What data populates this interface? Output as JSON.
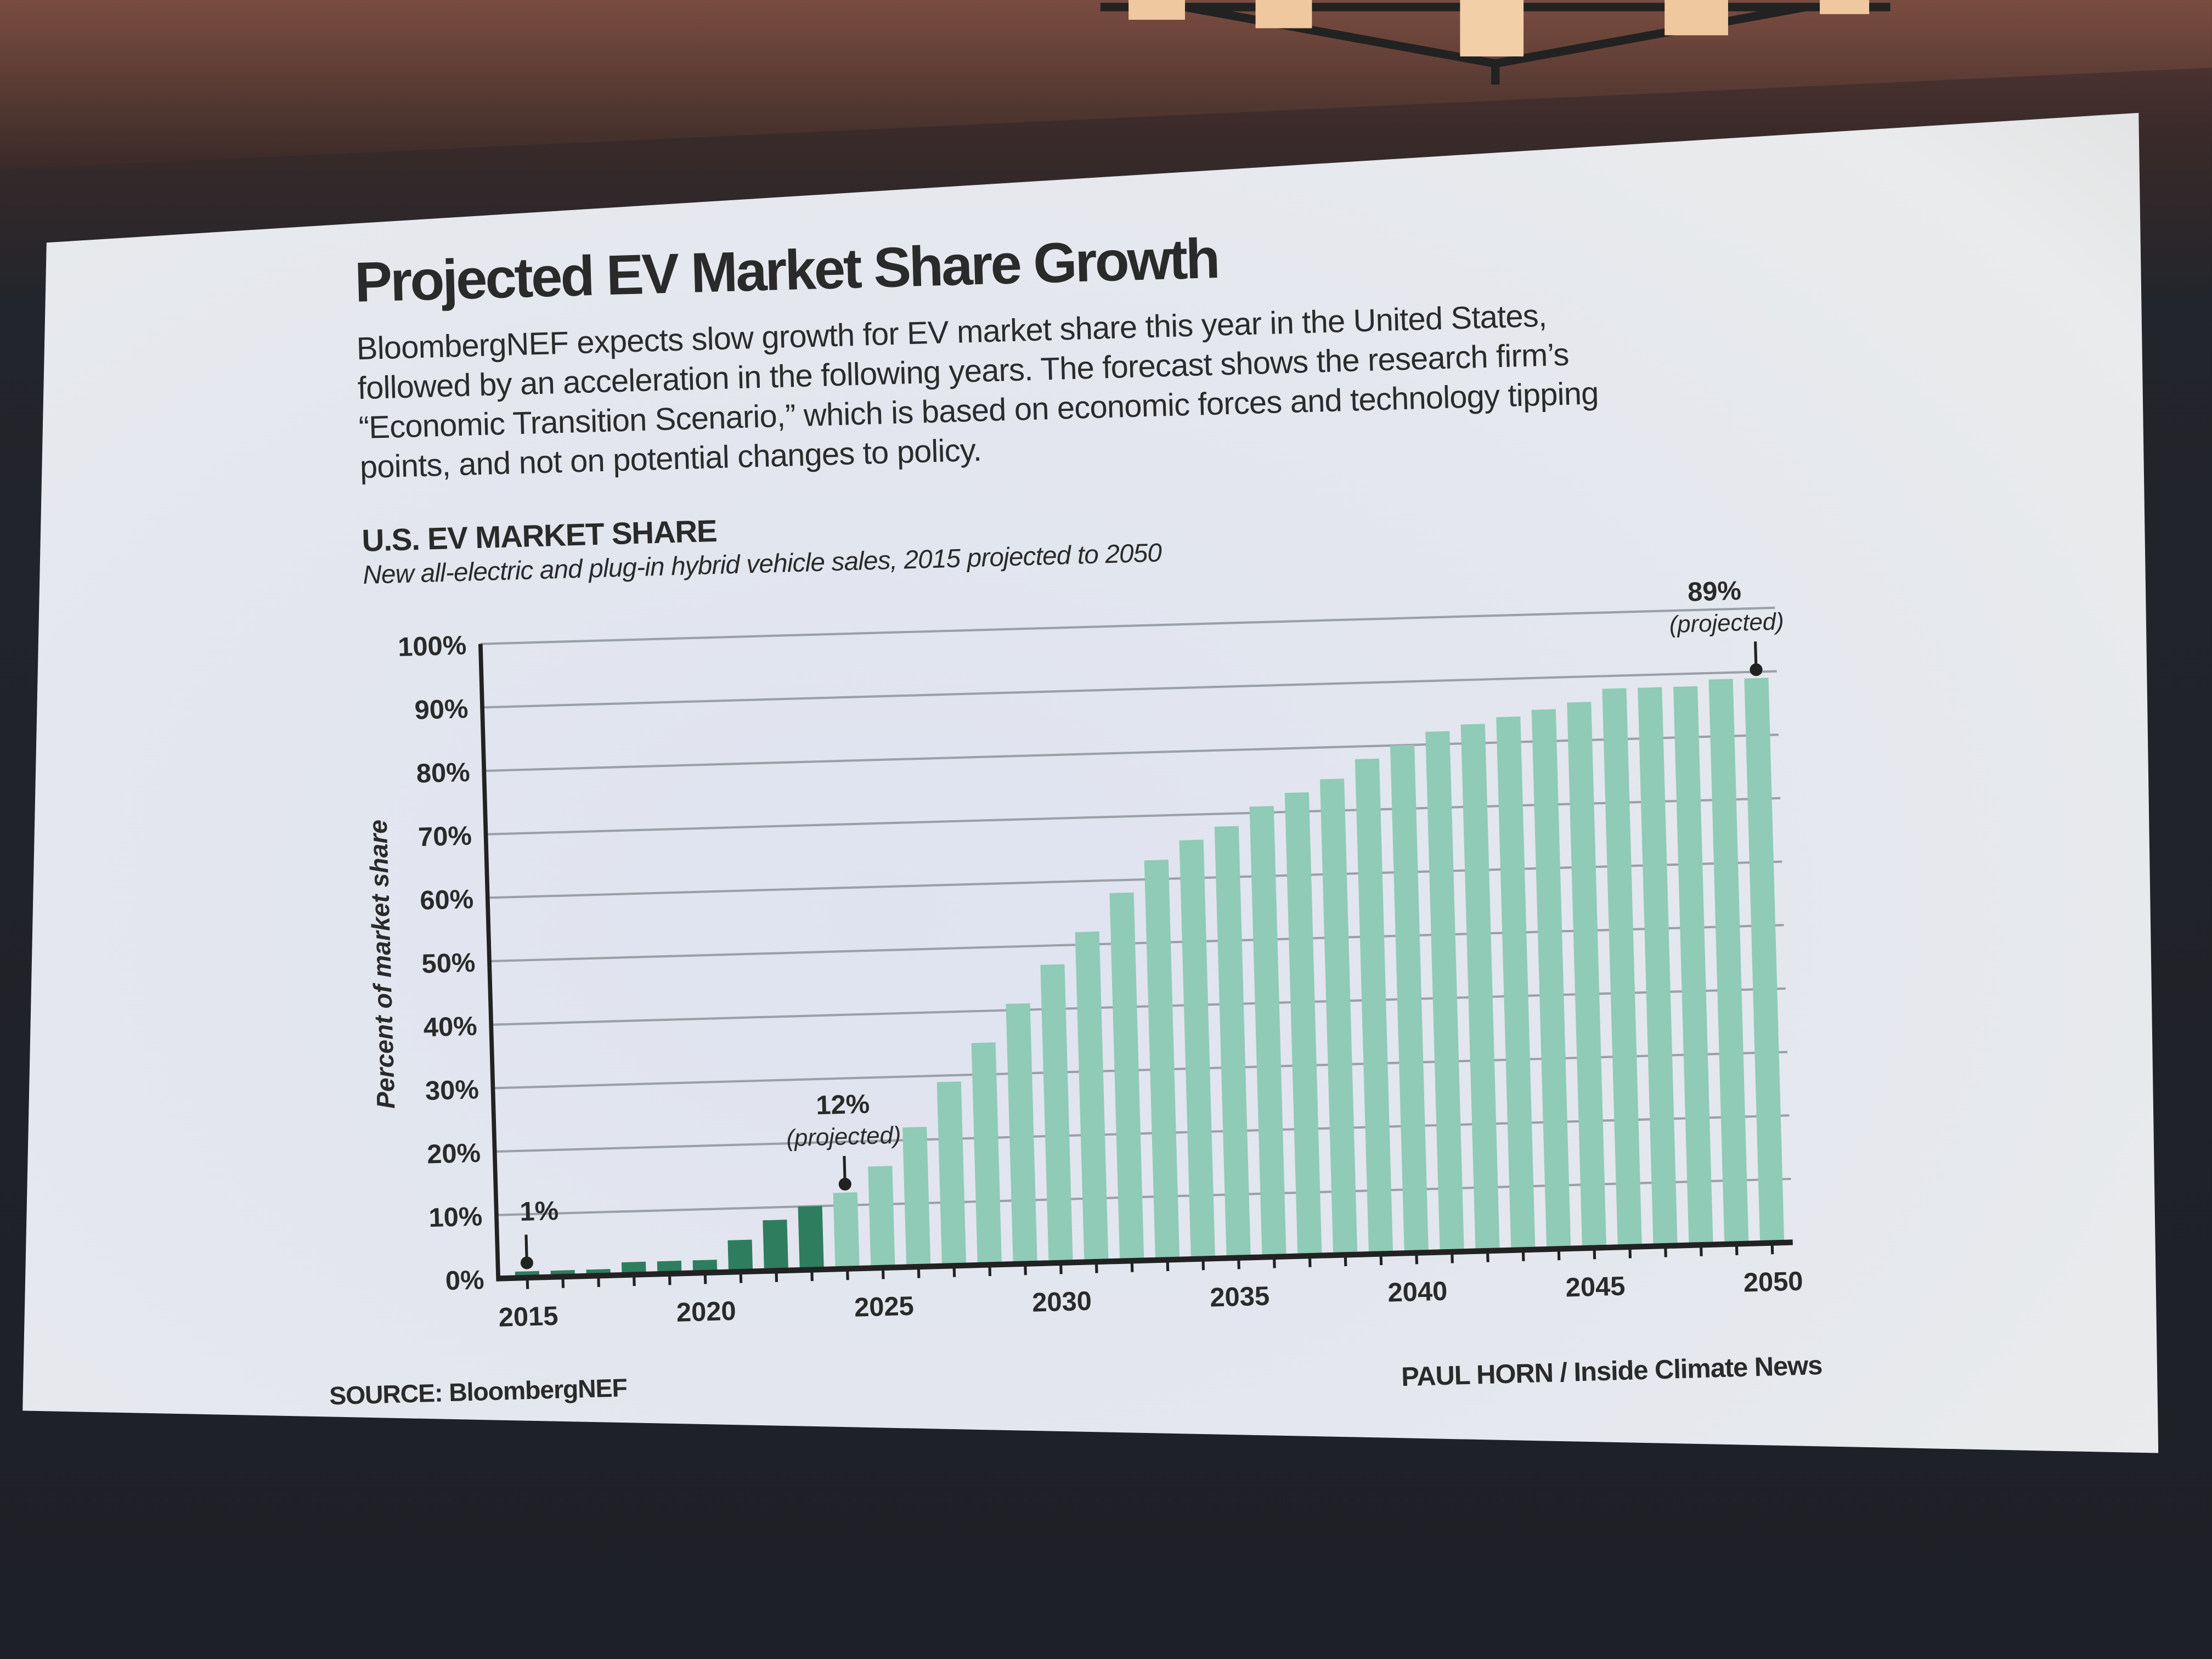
{
  "slide": {
    "title": "Projected EV Market Share Growth",
    "description": "BloombergNEF expects slow growth for EV market share this year in the United States, followed by an acceleration in the following years. The forecast shows the research firm’s “Economic Transition Scenario,” which is based on economic forces and technology tipping points, and not on potential changes to policy.",
    "source": "SOURCE: BloombergNEF",
    "credit": "PAUL HORN / Inside Climate News"
  },
  "chart_data": {
    "type": "bar",
    "title": "U.S. EV MARKET SHARE",
    "subtitle": "New all-electric and plug-in hybrid vehicle sales, 2015 projected to 2050",
    "ylabel": "Percent of market share",
    "xlabel": "",
    "ylim": [
      0,
      100
    ],
    "yticks": [
      "0%",
      "10%",
      "20%",
      "30%",
      "40%",
      "50%",
      "60%",
      "70%",
      "80%",
      "90%",
      "100%"
    ],
    "xticks": [
      "2015",
      "2020",
      "2025",
      "2030",
      "2035",
      "2040",
      "2045",
      "2050"
    ],
    "grid": true,
    "categories": [
      2015,
      2016,
      2017,
      2018,
      2019,
      2020,
      2021,
      2022,
      2023,
      2024,
      2025,
      2026,
      2027,
      2028,
      2029,
      2030,
      2031,
      2032,
      2033,
      2034,
      2035,
      2036,
      2037,
      2038,
      2039,
      2040,
      2041,
      2042,
      2043,
      2044,
      2045,
      2046,
      2047,
      2048,
      2049,
      2050
    ],
    "values": [
      1,
      1,
      1,
      2,
      2,
      2,
      5,
      8,
      10,
      12,
      16,
      22,
      29,
      35,
      41,
      47,
      52,
      58,
      63,
      66,
      68,
      71,
      73,
      75,
      78,
      80,
      82,
      83,
      84,
      85,
      86,
      88,
      88,
      88,
      89,
      89
    ],
    "first_projected_year": 2024,
    "colors": {
      "actual": "#2e7d5f",
      "projected": "#8fcbb6",
      "axis": "#222222",
      "grid": "#9aa0a8"
    },
    "annotations": [
      {
        "year": 2015,
        "label": "1%",
        "sublabel": ""
      },
      {
        "year": 2024,
        "label": "12%",
        "sublabel": "(projected)"
      },
      {
        "year": 2050,
        "label": "89%",
        "sublabel": "(projected)"
      }
    ]
  }
}
